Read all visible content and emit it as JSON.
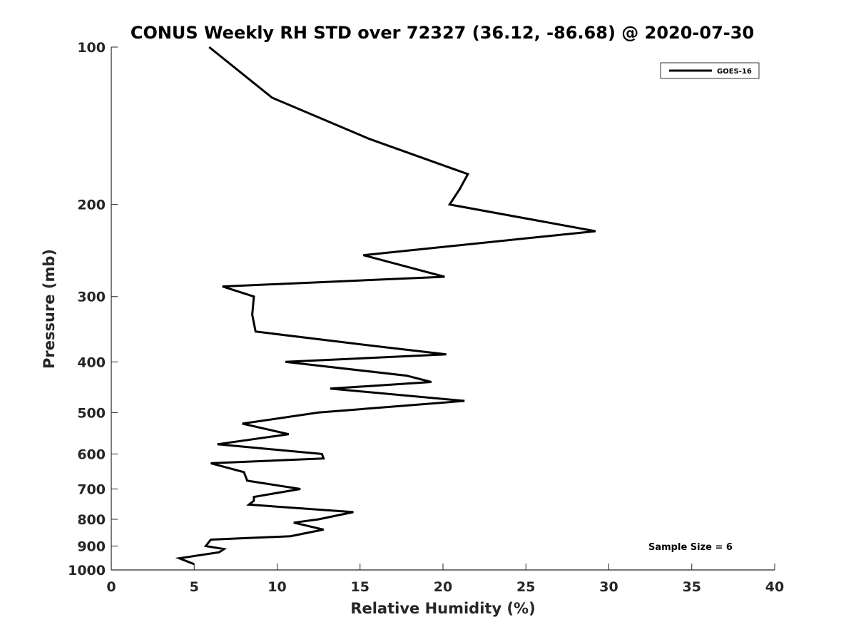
{
  "chart_data": {
    "type": "line",
    "title": "CONUS Weekly RH STD over 72327 (36.12, -86.68) @ 2020-07-30",
    "xlabel": "Relative Humidity (%)",
    "ylabel": "Pressure (mb)",
    "xlim": [
      0,
      40
    ],
    "ylim": [
      100,
      1000
    ],
    "y_scale": "log",
    "y_reversed": true,
    "x_ticks": [
      "0",
      "5",
      "10",
      "15",
      "20",
      "25",
      "30",
      "35",
      "40"
    ],
    "y_ticks": [
      "100",
      "200",
      "300",
      "400",
      "500",
      "600",
      "700",
      "800",
      "900",
      "1000"
    ],
    "grid": false,
    "legend_position": "top-right",
    "annotation": "Sample Size = 6",
    "series": [
      {
        "name": "GOES-16",
        "color": "#000000",
        "points": [
          [
            5.9,
            100
          ],
          [
            9.7,
            125
          ],
          [
            15.6,
            150
          ],
          [
            21.5,
            175
          ],
          [
            21.0,
            187
          ],
          [
            20.4,
            200
          ],
          [
            29.2,
            225
          ],
          [
            15.2,
            250
          ],
          [
            20.1,
            275
          ],
          [
            6.7,
            287
          ],
          [
            8.6,
            300
          ],
          [
            8.5,
            325
          ],
          [
            8.7,
            350
          ],
          [
            16.5,
            375
          ],
          [
            20.2,
            387
          ],
          [
            10.5,
            400
          ],
          [
            17.8,
            425
          ],
          [
            19.3,
            437
          ],
          [
            13.2,
            450
          ],
          [
            21.3,
            475
          ],
          [
            12.5,
            500
          ],
          [
            7.9,
            525
          ],
          [
            10.7,
            550
          ],
          [
            6.4,
            575
          ],
          [
            12.7,
            600
          ],
          [
            12.8,
            612
          ],
          [
            6.0,
            625
          ],
          [
            8.0,
            650
          ],
          [
            8.2,
            675
          ],
          [
            11.4,
            700
          ],
          [
            8.6,
            725
          ],
          [
            8.6,
            737
          ],
          [
            8.3,
            750
          ],
          [
            14.6,
            775
          ],
          [
            12.5,
            800
          ],
          [
            11.0,
            812
          ],
          [
            12.8,
            837
          ],
          [
            10.8,
            862
          ],
          [
            6.0,
            875
          ],
          [
            5.7,
            900
          ],
          [
            6.8,
            912
          ],
          [
            6.5,
            925
          ],
          [
            4.1,
            950
          ],
          [
            5.0,
            975
          ]
        ]
      }
    ]
  }
}
